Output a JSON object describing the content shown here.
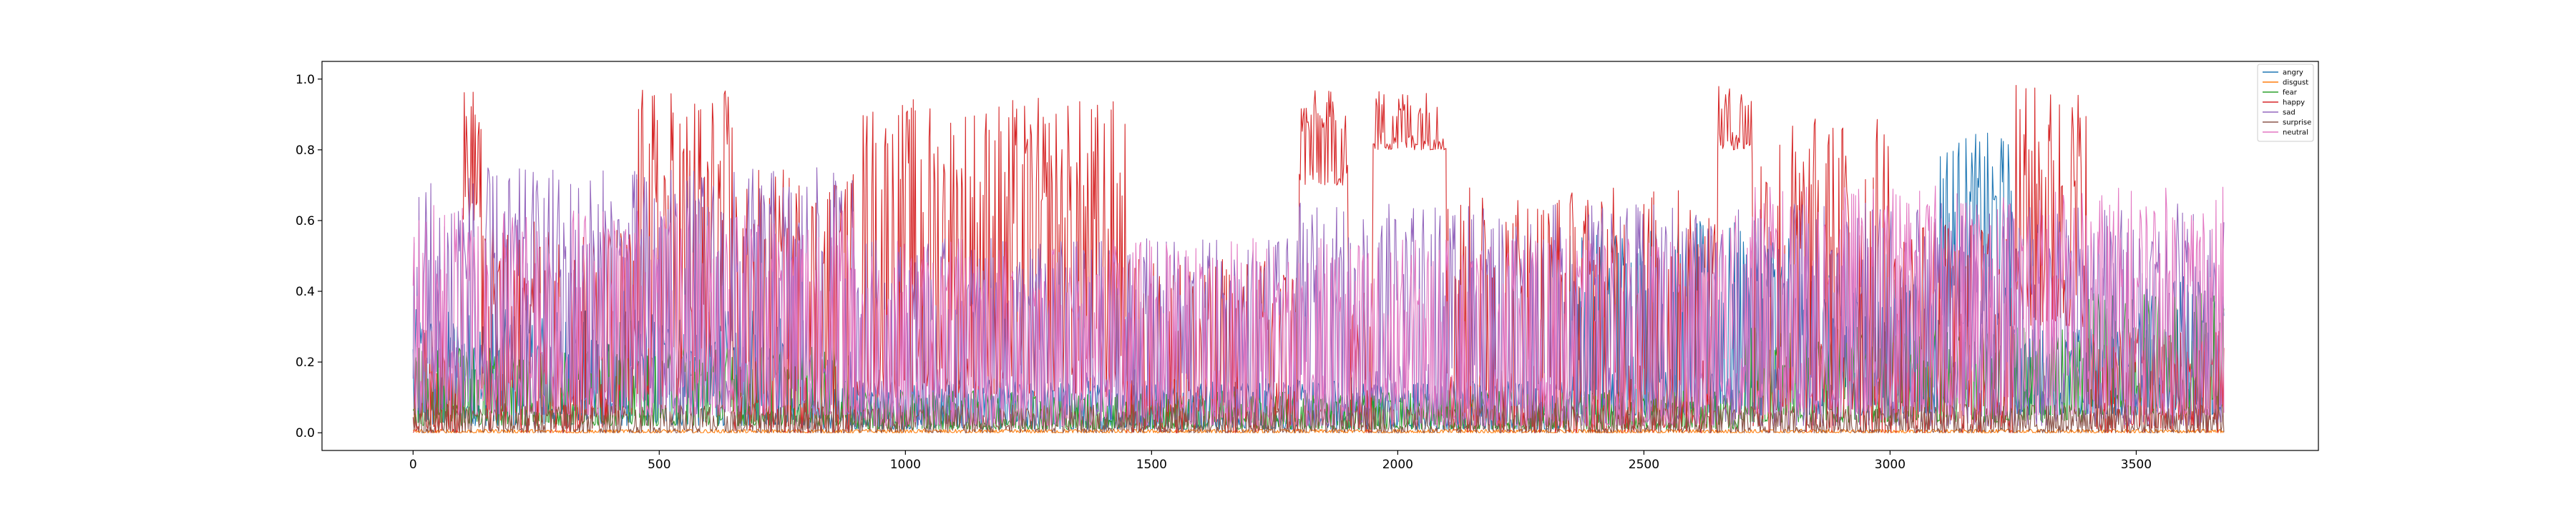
{
  "chart_data": {
    "type": "line",
    "title": "",
    "xlabel": "",
    "ylabel": "",
    "xlim": [
      -185,
      3870
    ],
    "ylim": [
      -0.05,
      1.05
    ],
    "n_points": 3680,
    "xticks": [
      0,
      500,
      1000,
      1500,
      2000,
      2500,
      3000,
      3500
    ],
    "yticks": [
      0.0,
      0.2,
      0.4,
      0.6,
      0.8,
      1.0
    ],
    "xtick_labels": [
      "0",
      "500",
      "1000",
      "1500",
      "2000",
      "2500",
      "3000",
      "3500"
    ],
    "ytick_labels": [
      "0.0",
      "0.2",
      "0.4",
      "0.6",
      "0.8",
      "1.0"
    ],
    "grid": false,
    "legend_position": "top-right",
    "series": [
      {
        "name": "angry",
        "color": "#1f77b4",
        "segments": [
          {
            "x0": 0,
            "x1": 800,
            "lo": 0.02,
            "hi": 0.35
          },
          {
            "x0": 800,
            "x1": 2350,
            "lo": 0.01,
            "hi": 0.15
          },
          {
            "x0": 2350,
            "x1": 2800,
            "lo": 0.05,
            "hi": 0.6
          },
          {
            "x0": 2800,
            "x1": 3100,
            "lo": 0.05,
            "hi": 0.45
          },
          {
            "x0": 3100,
            "x1": 3250,
            "lo": 0.3,
            "hi": 0.85
          },
          {
            "x0": 3250,
            "x1": 3500,
            "lo": 0.05,
            "hi": 0.3
          },
          {
            "x0": 3500,
            "x1": 3680,
            "lo": 0.05,
            "hi": 0.45
          }
        ]
      },
      {
        "name": "disgust",
        "color": "#ff7f0e",
        "segments": [
          {
            "x0": 0,
            "x1": 3680,
            "lo": 0.0,
            "hi": 0.01
          }
        ]
      },
      {
        "name": "fear",
        "color": "#2ca02c",
        "segments": [
          {
            "x0": 0,
            "x1": 900,
            "lo": 0.02,
            "hi": 0.25
          },
          {
            "x0": 900,
            "x1": 2700,
            "lo": 0.01,
            "hi": 0.12
          },
          {
            "x0": 2700,
            "x1": 3400,
            "lo": 0.03,
            "hi": 0.3
          },
          {
            "x0": 3400,
            "x1": 3680,
            "lo": 0.05,
            "hi": 0.4
          }
        ]
      },
      {
        "name": "happy",
        "color": "#d62728",
        "segments": [
          {
            "x0": 0,
            "x1": 100,
            "lo": 0.0,
            "hi": 0.3
          },
          {
            "x0": 100,
            "x1": 140,
            "lo": 0.6,
            "hi": 0.98
          },
          {
            "x0": 140,
            "x1": 450,
            "lo": 0.0,
            "hi": 0.6
          },
          {
            "x0": 450,
            "x1": 650,
            "lo": 0.1,
            "hi": 0.98
          },
          {
            "x0": 650,
            "x1": 900,
            "lo": 0.0,
            "hi": 0.75
          },
          {
            "x0": 900,
            "x1": 1450,
            "lo": 0.1,
            "hi": 0.95
          },
          {
            "x0": 1450,
            "x1": 1800,
            "lo": 0.0,
            "hi": 0.5
          },
          {
            "x0": 1800,
            "x1": 1900,
            "lo": 0.7,
            "hi": 0.97
          },
          {
            "x0": 1900,
            "x1": 1950,
            "lo": 0.0,
            "hi": 0.4
          },
          {
            "x0": 1950,
            "x1": 2100,
            "lo": 0.8,
            "hi": 0.97
          },
          {
            "x0": 2100,
            "x1": 2650,
            "lo": 0.0,
            "hi": 0.7
          },
          {
            "x0": 2650,
            "x1": 2720,
            "lo": 0.8,
            "hi": 0.98
          },
          {
            "x0": 2720,
            "x1": 3000,
            "lo": 0.0,
            "hi": 0.9
          },
          {
            "x0": 3000,
            "x1": 3250,
            "lo": 0.0,
            "hi": 0.6
          },
          {
            "x0": 3250,
            "x1": 3400,
            "lo": 0.3,
            "hi": 0.99
          },
          {
            "x0": 3400,
            "x1": 3680,
            "lo": 0.0,
            "hi": 0.3
          }
        ]
      },
      {
        "name": "sad",
        "color": "#9467bd",
        "segments": [
          {
            "x0": 0,
            "x1": 900,
            "lo": 0.05,
            "hi": 0.75
          },
          {
            "x0": 900,
            "x1": 1800,
            "lo": 0.02,
            "hi": 0.55
          },
          {
            "x0": 1800,
            "x1": 2650,
            "lo": 0.02,
            "hi": 0.65
          },
          {
            "x0": 2650,
            "x1": 3680,
            "lo": 0.02,
            "hi": 0.65
          }
        ]
      },
      {
        "name": "surprise",
        "color": "#8c564b",
        "segments": [
          {
            "x0": 0,
            "x1": 3680,
            "lo": 0.0,
            "hi": 0.08
          }
        ]
      },
      {
        "name": "neutral",
        "color": "#e377c2",
        "segments": [
          {
            "x0": 0,
            "x1": 900,
            "lo": 0.05,
            "hi": 0.65
          },
          {
            "x0": 900,
            "x1": 2650,
            "lo": 0.02,
            "hi": 0.55
          },
          {
            "x0": 2650,
            "x1": 3680,
            "lo": 0.05,
            "hi": 0.7
          }
        ]
      }
    ]
  }
}
